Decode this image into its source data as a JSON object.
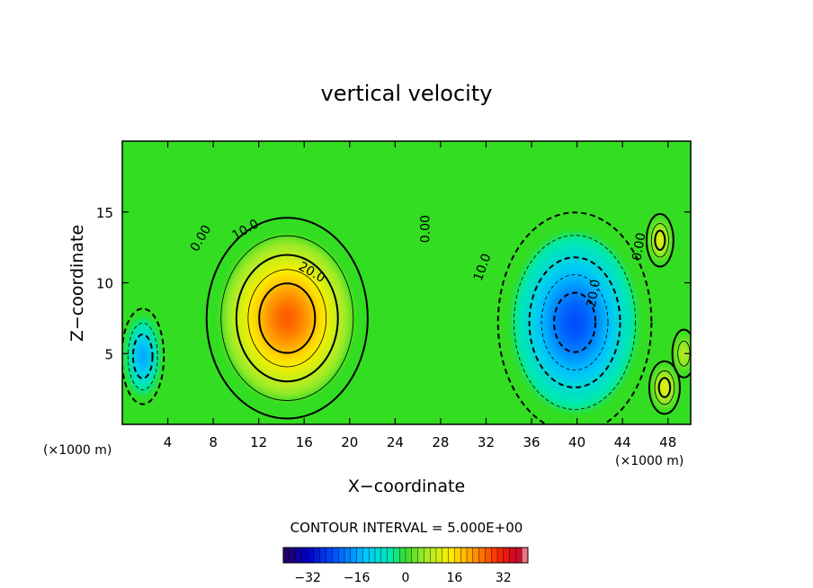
{
  "chart_data": {
    "type": "contour",
    "title": "vertical velocity",
    "xlabel": "X−coordinate",
    "ylabel": "Z−coordinate",
    "x_unit_left": "(×1000 m)",
    "x_unit_right": "(×1000 m)",
    "xlim": [
      0,
      50
    ],
    "ylim": [
      0,
      20
    ],
    "x_ticks": [
      4,
      8,
      12,
      16,
      20,
      24,
      28,
      32,
      36,
      40,
      44,
      48
    ],
    "y_ticks": [
      5,
      10,
      15
    ],
    "contour_interval_text": "CONTOUR INTERVAL = 5.000E+00",
    "contour_labels": [
      {
        "text": "0.00",
        "x": 7.2,
        "y": 13.0,
        "rotate": -60
      },
      {
        "text": "10.0",
        "x": 11.0,
        "y": 13.5,
        "rotate": -30
      },
      {
        "text": "20.0",
        "x": 16.5,
        "y": 10.5,
        "rotate": 30
      },
      {
        "text": "0.00",
        "x": 27.0,
        "y": 13.8,
        "rotate": -90
      },
      {
        "text": "10.0",
        "x": 32.0,
        "y": 11.0,
        "rotate": -70
      },
      {
        "text": "20.0",
        "x": 41.8,
        "y": 9.2,
        "rotate": -80
      },
      {
        "text": "0.00",
        "x": 45.8,
        "y": 12.5,
        "rotate": -80
      }
    ],
    "cells": [
      {
        "name": "updraft",
        "x": 14.5,
        "z": 7.5,
        "sx": 4.2,
        "sz": 4.2,
        "amp": 27
      },
      {
        "name": "downdraft",
        "x": 39.8,
        "z": 7.2,
        "sx": 4.0,
        "sz": 4.6,
        "amp": -24
      },
      {
        "name": "left-downdraft",
        "x": 1.8,
        "z": 4.8,
        "sx": 1.1,
        "sz": 2.0,
        "amp": -17
      },
      {
        "name": "right-upper-updraft",
        "x": 47.3,
        "z": 13.0,
        "sx": 0.7,
        "sz": 1.1,
        "amp": 14
      },
      {
        "name": "right-lower-updraft",
        "x": 47.7,
        "z": 2.6,
        "sx": 0.8,
        "sz": 1.1,
        "amp": 14
      },
      {
        "name": "right-mid-updraft",
        "x": 49.4,
        "z": 5.0,
        "sx": 0.6,
        "sz": 1.0,
        "amp": 10
      }
    ],
    "colorbar": {
      "min": -40,
      "max": 40,
      "tick_values": [
        -32,
        -16,
        0,
        16,
        32
      ],
      "tick_labels": [
        "−32",
        "−16",
        "0",
        "16",
        "32"
      ]
    }
  }
}
